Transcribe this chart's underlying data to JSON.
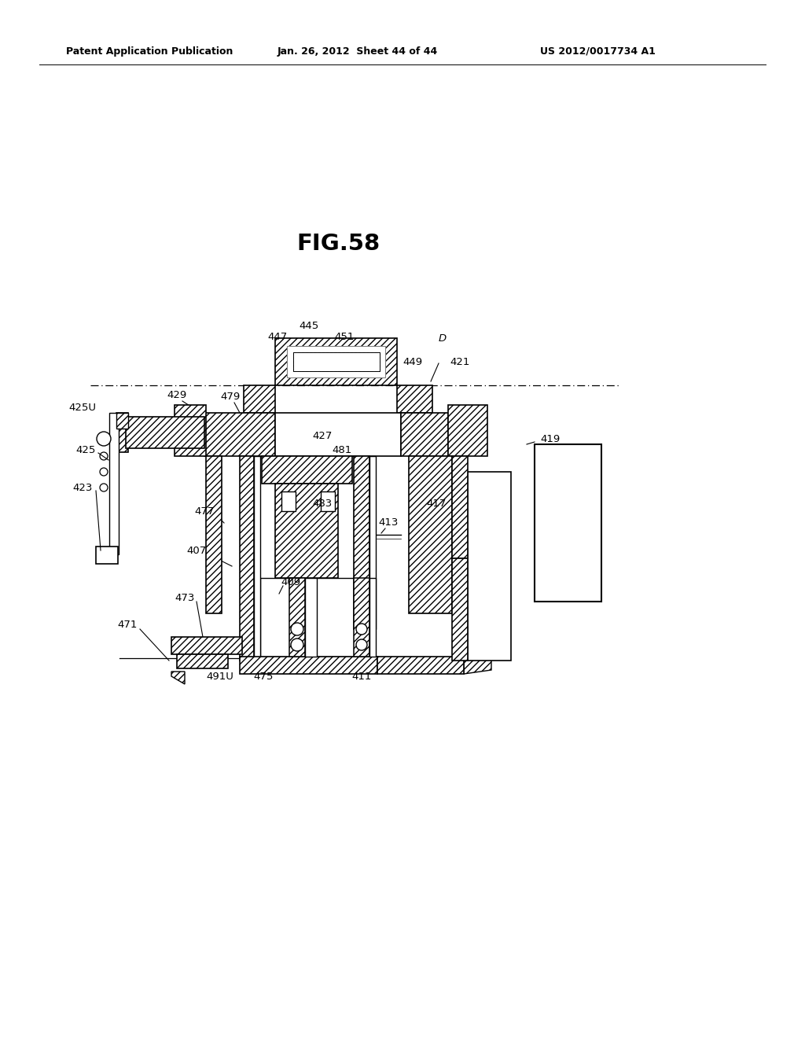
{
  "title": "FIG.58",
  "header_left": "Patent Application Publication",
  "header_center": "Jan. 26, 2012  Sheet 44 of 44",
  "header_right": "US 2012/0017734 A1",
  "bg_color": "#ffffff",
  "line_color": "#000000",
  "label_fontsize": 9.5,
  "title_fontsize": 21,
  "header_fontsize": 9
}
